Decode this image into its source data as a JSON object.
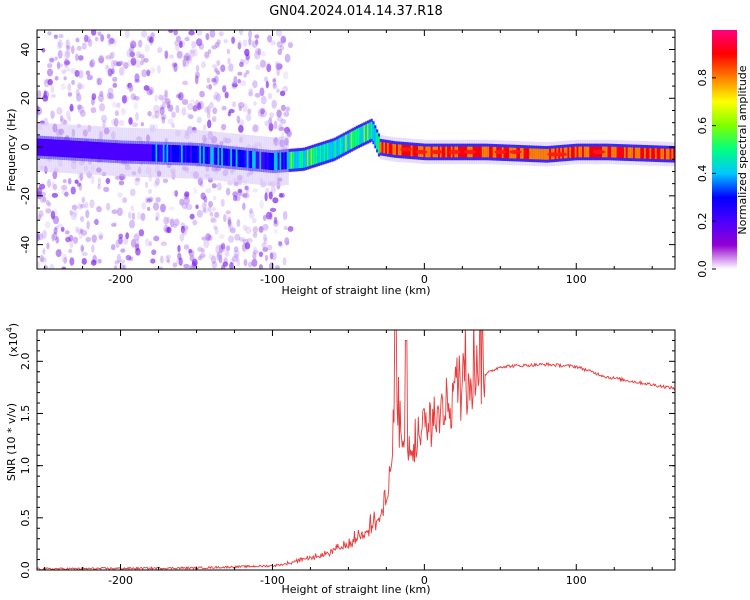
{
  "title": "GN04.2024.014.14.37.R18",
  "chart_data": [
    {
      "type": "heatmap",
      "xlabel": "Height of straight line (km)",
      "ylabel": "Frequency (Hz)",
      "xlim": [
        -255,
        165
      ],
      "ylim": [
        -50,
        48
      ],
      "xticks": [
        -200,
        -100,
        0,
        100
      ],
      "yticks": [
        -40,
        -20,
        0,
        20,
        40
      ],
      "colorbar": {
        "label": "Normalized spectral amplitude",
        "range": [
          0,
          1
        ],
        "ticks": [
          "0.0",
          "0.2",
          "0.4",
          "0.6",
          "0.8"
        ],
        "colormap": [
          "#ffffff",
          "#9400d3",
          "#4b00ff",
          "#0000ff",
          "#00c8ff",
          "#00ff80",
          "#7fff00",
          "#ffff00",
          "#ff8000",
          "#ff0000",
          "#ff0080"
        ]
      },
      "ridge": {
        "x": [
          -255,
          -200,
          -150,
          -100,
          -80,
          -60,
          -45,
          -35,
          -30,
          -20,
          0,
          40,
          80,
          100,
          120,
          165
        ],
        "y": [
          0,
          -2,
          -3,
          -6,
          -5,
          -1,
          4,
          7,
          0,
          -1,
          -2,
          -2,
          -3,
          -2,
          -2,
          -3
        ]
      }
    },
    {
      "type": "line",
      "xlabel": "Height of straight line (km)",
      "ylabel": "SNR (10 * v/v)",
      "scale_label": "(x10",
      "scale_exp": "4",
      "xlim": [
        -255,
        165
      ],
      "ylim": [
        0,
        2.3
      ],
      "xticks": [
        -200,
        -100,
        0,
        100
      ],
      "yticks": [
        "0.0",
        "0.5",
        "1.0",
        "1.5",
        "2.0"
      ],
      "color": "#e83a3a",
      "envelope": {
        "x": [
          -255,
          -150,
          -100,
          -90,
          -70,
          -50,
          -40,
          -30,
          -25,
          -20,
          -18,
          -15,
          -10,
          0,
          10,
          20,
          30,
          50,
          80,
          100,
          110,
          120,
          140,
          165
        ],
        "y": [
          0.01,
          0.02,
          0.04,
          0.06,
          0.12,
          0.22,
          0.35,
          0.45,
          0.6,
          1.3,
          1.6,
          1.1,
          1.0,
          1.25,
          1.4,
          1.6,
          1.8,
          1.95,
          1.97,
          1.95,
          1.9,
          1.85,
          1.8,
          1.74
        ]
      }
    }
  ]
}
